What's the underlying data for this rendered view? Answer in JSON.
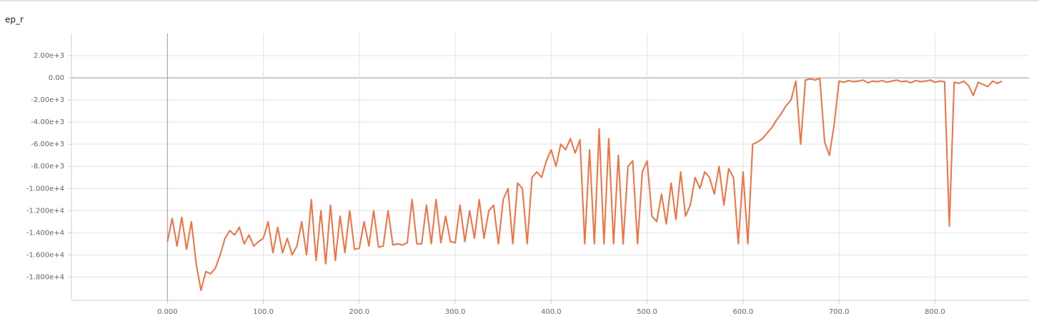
{
  "chart_data": {
    "type": "line",
    "title": "ep_r",
    "grid": true,
    "xlim": [
      -100,
      898
    ],
    "ylim": [
      -20100,
      4000
    ],
    "xticks": [
      {
        "value": 0,
        "label": "0.000"
      },
      {
        "value": 100,
        "label": "100.0"
      },
      {
        "value": 200,
        "label": "200.0"
      },
      {
        "value": 300,
        "label": "300.0"
      },
      {
        "value": 400,
        "label": "400.0"
      },
      {
        "value": 500,
        "label": "500.0"
      },
      {
        "value": 600,
        "label": "600.0"
      },
      {
        "value": 700,
        "label": "700.0"
      },
      {
        "value": 800,
        "label": "800.0"
      }
    ],
    "yticks": [
      {
        "value": 2000,
        "label": "2.00e+3"
      },
      {
        "value": 0,
        "label": "0.00"
      },
      {
        "value": -2000,
        "label": "-2.00e+3"
      },
      {
        "value": -4000,
        "label": "-4.00e+3"
      },
      {
        "value": -6000,
        "label": "-6.00e+3"
      },
      {
        "value": -8000,
        "label": "-8.00e+3"
      },
      {
        "value": -10000,
        "label": "-1.000e+4"
      },
      {
        "value": -12000,
        "label": "-1.200e+4"
      },
      {
        "value": -14000,
        "label": "-1.400e+4"
      },
      {
        "value": -16000,
        "label": "-1.600e+4"
      },
      {
        "value": -18000,
        "label": "-1.800e+4"
      }
    ],
    "x": [
      0,
      5,
      10,
      15,
      20,
      25,
      30,
      35,
      40,
      45,
      50,
      55,
      60,
      65,
      70,
      75,
      80,
      85,
      90,
      95,
      100,
      105,
      110,
      115,
      120,
      125,
      130,
      135,
      140,
      145,
      150,
      155,
      160,
      165,
      170,
      175,
      180,
      185,
      190,
      195,
      200,
      205,
      210,
      215,
      220,
      225,
      230,
      235,
      240,
      245,
      250,
      255,
      260,
      265,
      270,
      275,
      280,
      285,
      290,
      295,
      300,
      305,
      310,
      315,
      320,
      325,
      330,
      335,
      340,
      345,
      350,
      355,
      360,
      365,
      370,
      375,
      380,
      385,
      390,
      395,
      400,
      405,
      410,
      415,
      420,
      425,
      430,
      435,
      440,
      445,
      450,
      455,
      460,
      465,
      470,
      475,
      480,
      485,
      490,
      495,
      500,
      505,
      510,
      515,
      520,
      525,
      530,
      535,
      540,
      545,
      550,
      555,
      560,
      565,
      570,
      575,
      580,
      585,
      590,
      595,
      600,
      605,
      610,
      615,
      620,
      625,
      630,
      635,
      640,
      645,
      650,
      655,
      660,
      665,
      670,
      675,
      680,
      685,
      690,
      695,
      700,
      705,
      710,
      715,
      720,
      725,
      730,
      735,
      740,
      745,
      750,
      755,
      760,
      765,
      770,
      775,
      780,
      785,
      790,
      795,
      800,
      805,
      810,
      815,
      820,
      825,
      830,
      835,
      840,
      845,
      850,
      855,
      860,
      865,
      870
    ],
    "series": [
      {
        "color": "#f4703f",
        "values": [
          -14800,
          -12700,
          -15200,
          -12600,
          -15500,
          -13000,
          -16800,
          -19200,
          -17500,
          -17700,
          -17200,
          -16000,
          -14500,
          -13800,
          -14200,
          -13500,
          -15000,
          -14200,
          -15200,
          -14800,
          -14500,
          -13000,
          -15800,
          -13500,
          -15800,
          -14500,
          -16000,
          -15200,
          -13000,
          -16000,
          -11000,
          -16500,
          -12000,
          -16800,
          -11500,
          -16500,
          -12500,
          -15800,
          -12000,
          -15500,
          -15400,
          -13000,
          -15200,
          -12000,
          -15300,
          -15200,
          -12000,
          -15100,
          -15000,
          -15100,
          -14900,
          -11000,
          -15000,
          -15000,
          -11500,
          -15000,
          -11000,
          -14900,
          -12500,
          -14800,
          -14900,
          -11500,
          -14800,
          -12000,
          -14500,
          -11000,
          -14500,
          -12000,
          -11500,
          -15000,
          -11000,
          -10000,
          -15000,
          -9500,
          -10000,
          -15000,
          -9000,
          -8500,
          -9000,
          -7500,
          -6500,
          -8000,
          -6000,
          -6500,
          -5500,
          -6800,
          -5600,
          -15000,
          -6500,
          -15000,
          -4600,
          -15000,
          -5500,
          -15000,
          -7000,
          -15000,
          -8000,
          -7500,
          -15000,
          -8500,
          -7500,
          -12500,
          -13000,
          -10500,
          -13200,
          -9500,
          -12800,
          -8500,
          -12500,
          -11500,
          -9000,
          -10000,
          -8500,
          -9000,
          -10500,
          -8000,
          -11500,
          -8200,
          -9000,
          -15000,
          -8500,
          -15000,
          -6000,
          -5800,
          -5500,
          -5000,
          -4500,
          -3800,
          -3200,
          -2500,
          -2000,
          -300,
          -6000,
          -200,
          -100,
          -200,
          -50,
          -5800,
          -7000,
          -4200,
          -300,
          -400,
          -250,
          -350,
          -300,
          -200,
          -450,
          -300,
          -350,
          -250,
          -400,
          -300,
          -200,
          -350,
          -300,
          -450,
          -250,
          -350,
          -300,
          -200,
          -400,
          -300,
          -350,
          -13400,
          -400,
          -500,
          -300,
          -700,
          -1600,
          -400,
          -600,
          -800,
          -300,
          -500,
          -300
        ]
      }
    ]
  }
}
